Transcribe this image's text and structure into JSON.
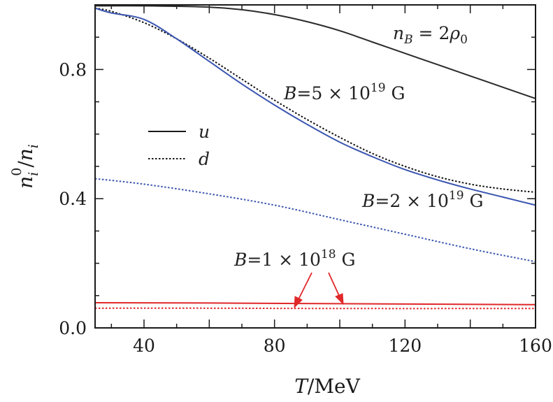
{
  "chart_data": {
    "type": "line",
    "xlabel": {
      "var": "T",
      "unit": "/MeV"
    },
    "ylabel": {
      "num": "n",
      "num_sub": "i",
      "num_sup": "0",
      "den": "n",
      "den_sub": "i"
    },
    "xlim": [
      25,
      160
    ],
    "ylim": [
      0,
      1.0
    ],
    "xticks": [
      "40",
      "80",
      "120",
      "160"
    ],
    "yticks": [
      "0.0",
      "0.4",
      "0.8"
    ],
    "xtick_values": [
      40,
      80,
      120,
      160
    ],
    "ytick_values": [
      0.0,
      0.4,
      0.8
    ],
    "legend": {
      "placement": "left",
      "entries": [
        {
          "label": "u",
          "style": "solid"
        },
        {
          "label": "d",
          "style": "dotted"
        }
      ]
    },
    "annotations": {
      "density": {
        "var": "n",
        "sub": "B",
        "rest": " = 2",
        "rho": "ρ",
        "rho_sub": "0"
      },
      "b_high": {
        "var": "B",
        "rest": "=5 × 10",
        "exp": "19",
        "unit": " G"
      },
      "b_mid": {
        "var": "B",
        "rest": "=2 × 10",
        "exp": "19",
        "unit": " G"
      },
      "b_low": {
        "var": "B",
        "rest": "=1 × 10",
        "exp": "18",
        "unit": " G"
      }
    },
    "series": [
      {
        "field": "5e19",
        "quark": "u",
        "style": "solid",
        "color": "#2b2b2b",
        "x": [
          25,
          40,
          60,
          70,
          80,
          90,
          100,
          110,
          120,
          130,
          140,
          150,
          160
        ],
        "y": [
          0.997,
          0.997,
          0.993,
          0.985,
          0.97,
          0.948,
          0.92,
          0.885,
          0.85,
          0.815,
          0.78,
          0.745,
          0.71
        ]
      },
      {
        "field": "5e19",
        "quark": "d",
        "style": "dotted",
        "color": "#111111",
        "x": [
          25,
          30,
          40,
          50,
          60,
          70,
          80,
          90,
          100,
          110,
          120,
          130,
          140,
          150,
          160
        ],
        "y": [
          0.99,
          0.98,
          0.945,
          0.895,
          0.835,
          0.77,
          0.705,
          0.645,
          0.59,
          0.54,
          0.5,
          0.468,
          0.445,
          0.43,
          0.42
        ]
      },
      {
        "field": "2e19",
        "quark": "u",
        "style": "solid",
        "color": "#3a55b0",
        "x": [
          25,
          30,
          40,
          50,
          60,
          70,
          80,
          90,
          100,
          110,
          120,
          130,
          140,
          150,
          160
        ],
        "y": [
          0.99,
          0.975,
          0.955,
          0.895,
          0.825,
          0.755,
          0.69,
          0.63,
          0.575,
          0.53,
          0.49,
          0.458,
          0.43,
          0.405,
          0.38
        ]
      },
      {
        "field": "2e19",
        "quark": "d",
        "style": "dotted",
        "color": "#3a55b0",
        "x": [
          25,
          40,
          60,
          80,
          100,
          120,
          140,
          160
        ],
        "y": [
          0.462,
          0.445,
          0.415,
          0.38,
          0.335,
          0.29,
          0.245,
          0.205
        ]
      },
      {
        "field": "1e18",
        "quark": "u",
        "style": "solid",
        "color": "#e0282a",
        "x": [
          25,
          60,
          100,
          160
        ],
        "y": [
          0.078,
          0.077,
          0.075,
          0.072
        ]
      },
      {
        "field": "1e18",
        "quark": "d",
        "style": "dotted",
        "color": "#e0282a",
        "x": [
          25,
          60,
          100,
          160
        ],
        "y": [
          0.061,
          0.061,
          0.06,
          0.06
        ]
      }
    ]
  }
}
